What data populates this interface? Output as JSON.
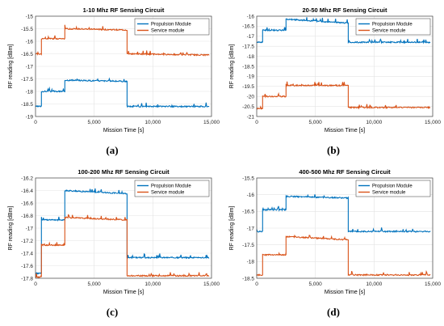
{
  "chart_data": [
    {
      "type": "line",
      "caption": "(a)",
      "title": "1-10 Mhz RF Sensing Circuit",
      "xlabel": "Mission Time [s]",
      "ylabel": "RF reading [dBm]",
      "xlim": [
        0,
        15000
      ],
      "ylim": [
        -19,
        -15
      ],
      "xticks": [
        0,
        5000,
        10000,
        15000
      ],
      "xtick_labels": [
        "0",
        "5,000",
        "10,000",
        "15,000"
      ],
      "yticks": [
        -19,
        -18.5,
        -18,
        -17.5,
        -17,
        -16.5,
        -16,
        -15.5,
        -15
      ],
      "ytick_labels": [
        "-19",
        "-18.5",
        "-18",
        "-17.5",
        "-17",
        "-16.5",
        "-16",
        "-15.5",
        "-15"
      ],
      "legend_position": "top-right",
      "grid": true,
      "series": [
        {
          "name": "Propulsion Module",
          "color": "#0072BD",
          "x": [
            0,
            500,
            500,
            2500,
            2500,
            7800,
            7800,
            14800
          ],
          "y": [
            -18.6,
            -18.6,
            -18.0,
            -18.0,
            -17.55,
            -17.6,
            -18.6,
            -18.6
          ]
        },
        {
          "name": "Service module",
          "color": "#D95319",
          "x": [
            0,
            500,
            500,
            2500,
            2500,
            7800,
            7800,
            14800
          ],
          "y": [
            -16.5,
            -16.5,
            -15.9,
            -15.9,
            -15.5,
            -15.55,
            -16.5,
            -16.55
          ]
        }
      ]
    },
    {
      "type": "line",
      "caption": "(b)",
      "title": "20-50 Mhz RF Sensing Circuit",
      "xlabel": "Mission Time [s]",
      "ylabel": "RF reading [dBm]",
      "xlim": [
        0,
        15000
      ],
      "ylim": [
        -21,
        -16
      ],
      "xticks": [
        0,
        5000,
        10000,
        15000
      ],
      "xtick_labels": [
        "0",
        "5,000",
        "10,000",
        "15,000"
      ],
      "yticks": [
        -21,
        -20.5,
        -20,
        -19.5,
        -19,
        -18.5,
        -18,
        -17.5,
        -17,
        -16.5,
        -16
      ],
      "ytick_labels": [
        "-21",
        "-20.5",
        "-20",
        "-19.5",
        "-19",
        "-18.5",
        "-18",
        "-17.5",
        "-17",
        "-16.5",
        "-16"
      ],
      "legend_position": "top-right",
      "grid": true,
      "series": [
        {
          "name": "Propulsion Module",
          "color": "#0072BD",
          "x": [
            0,
            500,
            500,
            2500,
            2500,
            7800,
            7800,
            14800
          ],
          "y": [
            -17.3,
            -17.3,
            -16.7,
            -16.7,
            -16.15,
            -16.35,
            -17.3,
            -17.3
          ]
        },
        {
          "name": "Service module",
          "color": "#D95319",
          "x": [
            0,
            500,
            500,
            2500,
            2500,
            7800,
            7800,
            14800
          ],
          "y": [
            -20.6,
            -20.6,
            -20.0,
            -20.0,
            -19.45,
            -19.45,
            -20.55,
            -20.55
          ]
        }
      ]
    },
    {
      "type": "line",
      "caption": "(c)",
      "title": "100-200 Mhz RF Sensing Circuit",
      "xlabel": "Mission Time [s]",
      "ylabel": "RF reading [dBm]",
      "xlim": [
        0,
        15000
      ],
      "ylim": [
        -17.8,
        -16.2
      ],
      "xticks": [
        0,
        5000,
        10000,
        15000
      ],
      "xtick_labels": [
        "0",
        "5,000",
        "10,000",
        "15,000"
      ],
      "yticks": [
        -17.8,
        -17.6,
        -17.4,
        -17.2,
        -17,
        -16.8,
        -16.6,
        -16.4,
        -16.2
      ],
      "ytick_labels": [
        "-17.8",
        "-17.6",
        "-17.4",
        "-17.2",
        "-17",
        "-16.8",
        "-16.6",
        "-16.4",
        "-16.2"
      ],
      "legend_position": "top-right",
      "grid": true,
      "series": [
        {
          "name": "Propulsion Module",
          "color": "#0072BD",
          "x": [
            0,
            500,
            500,
            2500,
            2500,
            7800,
            7800,
            14800
          ],
          "y": [
            -17.72,
            -17.72,
            -16.87,
            -16.87,
            -16.4,
            -16.45,
            -17.47,
            -17.47
          ]
        },
        {
          "name": "Service module",
          "color": "#D95319",
          "x": [
            0,
            500,
            500,
            2500,
            2500,
            7800,
            7800,
            14800
          ],
          "y": [
            -17.78,
            -17.78,
            -17.27,
            -17.27,
            -16.83,
            -16.87,
            -17.76,
            -17.76
          ]
        }
      ]
    },
    {
      "type": "line",
      "caption": "(d)",
      "title": "400-500 Mhz RF Sensing Circuit",
      "xlabel": "Mission Time [s]",
      "ylabel": "RF reading [dBm]",
      "xlim": [
        0,
        15000
      ],
      "ylim": [
        -18.5,
        -15.5
      ],
      "xticks": [
        0,
        5000,
        10000,
        15000
      ],
      "xtick_labels": [
        "0",
        "5,000",
        "10,000",
        "15,000"
      ],
      "yticks": [
        -18.5,
        -18,
        -17.5,
        -17,
        -16.5,
        -16,
        -15.5
      ],
      "ytick_labels": [
        "-18.5",
        "-18",
        "-17.5",
        "-17",
        "-16.5",
        "-16",
        "-15.5"
      ],
      "legend_position": "top-right",
      "grid": true,
      "series": [
        {
          "name": "Propulsion Module",
          "color": "#0072BD",
          "x": [
            0,
            500,
            500,
            2500,
            2500,
            7800,
            7800,
            14800
          ],
          "y": [
            -17.1,
            -17.1,
            -16.45,
            -16.45,
            -16.05,
            -16.1,
            -17.1,
            -17.1
          ]
        },
        {
          "name": "Service module",
          "color": "#D95319",
          "x": [
            0,
            500,
            500,
            2500,
            2500,
            7800,
            7800,
            14800
          ],
          "y": [
            -18.4,
            -18.4,
            -17.8,
            -17.8,
            -17.25,
            -17.35,
            -18.4,
            -18.4
          ]
        }
      ]
    }
  ]
}
